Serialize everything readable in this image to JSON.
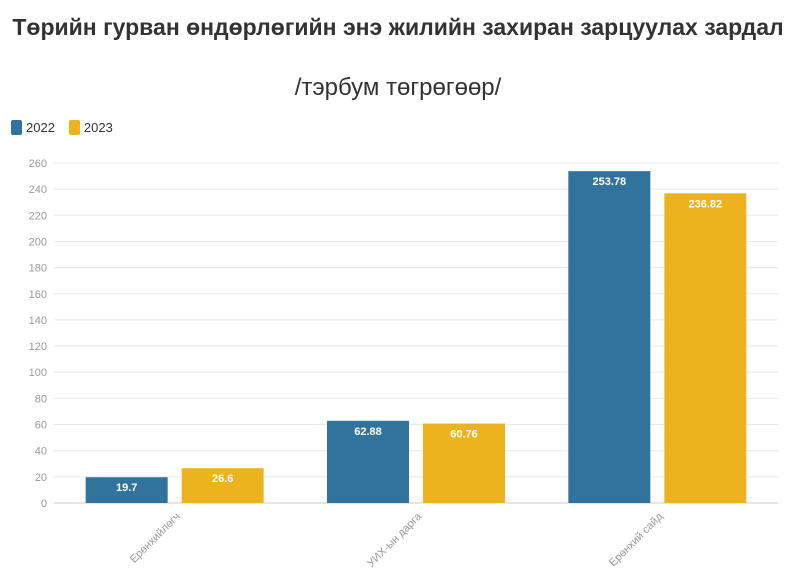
{
  "chart_data": {
    "type": "bar",
    "title": "Төрийн гурван өндөрлөгийн энэ жилийн захиран зарцуулах зардал",
    "subtitle": "/тэрбум төгрөгөөр/",
    "categories": [
      "Ерөнхийлөгч",
      "УИХ-ын дарга",
      "Ерөнхий сайд"
    ],
    "series": [
      {
        "name": "2022",
        "color": "#31739c",
        "values": [
          19.7,
          62.88,
          253.78
        ],
        "labels": [
          "19.7",
          "62.88",
          "253.78"
        ]
      },
      {
        "name": "2023",
        "color": "#edb31e",
        "values": [
          26.6,
          60.76,
          236.82
        ],
        "labels": [
          "26.6",
          "60.76",
          "236.82"
        ]
      }
    ],
    "ylim": [
      0,
      260
    ],
    "yticks": [
      "0",
      "20",
      "40",
      "60",
      "80",
      "100",
      "120",
      "140",
      "160",
      "180",
      "200",
      "220",
      "240",
      "260"
    ],
    "grid": true,
    "legend_position": "top-left"
  }
}
